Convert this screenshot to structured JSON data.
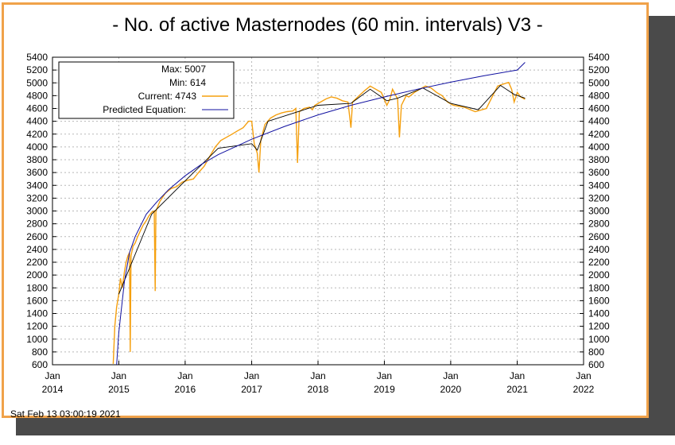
{
  "window": {
    "title": "- No. of active Masternodes (60 min. intervals) V3 -",
    "timestamp": "Sat Feb 13 03:00:19 2021"
  },
  "colors": {
    "frame": "#f0a24a",
    "current_series": "#f5a00f",
    "predicted_series": "#1010a0",
    "moving_average": "#000000",
    "grid": "#b8b8b8"
  },
  "chart_data": {
    "type": "line",
    "title": "- No. of active Masternodes (60 min. intervals) V3 -",
    "xlabel": "",
    "ylabel": "",
    "ylim": [
      600,
      5400
    ],
    "xlim": [
      "2014-01-01",
      "2022-01-01"
    ],
    "y_ticks": [
      600,
      800,
      1000,
      1200,
      1400,
      1600,
      1800,
      2000,
      2200,
      2400,
      2600,
      2800,
      3000,
      3200,
      3400,
      3600,
      3800,
      4000,
      4200,
      4400,
      4600,
      4800,
      5000,
      5200,
      5400
    ],
    "x_ticks": [
      {
        "month": "Jan",
        "year": "2014",
        "date": "2014-01-01"
      },
      {
        "month": "Jan",
        "year": "2015",
        "date": "2015-01-01"
      },
      {
        "month": "Jan",
        "year": "2016",
        "date": "2016-01-01"
      },
      {
        "month": "Jan",
        "year": "2017",
        "date": "2017-01-01"
      },
      {
        "month": "Jan",
        "year": "2018",
        "date": "2018-01-01"
      },
      {
        "month": "Jan",
        "year": "2019",
        "date": "2019-01-01"
      },
      {
        "month": "Jan",
        "year": "2020",
        "date": "2020-01-01"
      },
      {
        "month": "Jan",
        "year": "2021",
        "date": "2021-01-01"
      },
      {
        "month": "Jan",
        "year": "2022",
        "date": "2022-01-01"
      }
    ],
    "grid": true,
    "legend_position": "top-left",
    "legend": {
      "max_label": "Max: 5007",
      "min_label": "Min: 614",
      "current_label": "Current: 4743",
      "predicted_label": "Predicted Equation:"
    },
    "series": [
      {
        "name": "Current: 4743",
        "points": [
          [
            "2014-12-01",
            614
          ],
          [
            "2014-12-10",
            1200
          ],
          [
            "2014-12-20",
            1500
          ],
          [
            "2015-01-01",
            1700
          ],
          [
            "2015-01-10",
            1950
          ],
          [
            "2015-01-20",
            1800
          ],
          [
            "2015-02-01",
            2050
          ],
          [
            "2015-02-10",
            2200
          ],
          [
            "2015-02-20",
            2300
          ],
          [
            "2015-03-01",
            2350
          ],
          [
            "2015-03-05",
            800
          ],
          [
            "2015-03-09",
            2300
          ],
          [
            "2015-03-20",
            2450
          ],
          [
            "2015-04-01",
            2500
          ],
          [
            "2015-04-15",
            2600
          ],
          [
            "2015-05-01",
            2700
          ],
          [
            "2015-05-15",
            2780
          ],
          [
            "2015-06-01",
            2850
          ],
          [
            "2015-06-15",
            2920
          ],
          [
            "2015-07-01",
            2980
          ],
          [
            "2015-07-15",
            3000
          ],
          [
            "2015-07-20",
            1750
          ],
          [
            "2015-07-24",
            3000
          ],
          [
            "2015-08-15",
            3150
          ],
          [
            "2015-09-15",
            3280
          ],
          [
            "2015-10-15",
            3350
          ],
          [
            "2015-11-15",
            3380
          ],
          [
            "2015-12-15",
            3450
          ],
          [
            "2016-01-15",
            3480
          ],
          [
            "2016-02-15",
            3500
          ],
          [
            "2016-03-15",
            3600
          ],
          [
            "2016-04-15",
            3700
          ],
          [
            "2016-05-15",
            3850
          ],
          [
            "2016-06-15",
            4000
          ],
          [
            "2016-07-15",
            4100
          ],
          [
            "2016-08-15",
            4150
          ],
          [
            "2016-09-15",
            4200
          ],
          [
            "2016-10-15",
            4250
          ],
          [
            "2016-11-15",
            4300
          ],
          [
            "2016-12-15",
            4400
          ],
          [
            "2017-01-01",
            4400
          ],
          [
            "2017-01-15",
            4050
          ],
          [
            "2017-02-01",
            3900
          ],
          [
            "2017-02-10",
            3600
          ],
          [
            "2017-02-20",
            4100
          ],
          [
            "2017-03-01",
            4200
          ],
          [
            "2017-03-15",
            4350
          ],
          [
            "2017-04-15",
            4450
          ],
          [
            "2017-05-15",
            4500
          ],
          [
            "2017-06-15",
            4530
          ],
          [
            "2017-07-15",
            4550
          ],
          [
            "2017-08-15",
            4560
          ],
          [
            "2017-09-01",
            4600
          ],
          [
            "2017-09-10",
            3750
          ],
          [
            "2017-09-20",
            4550
          ],
          [
            "2017-10-15",
            4600
          ],
          [
            "2017-11-15",
            4620
          ],
          [
            "2017-12-01",
            4580
          ],
          [
            "2017-12-15",
            4650
          ],
          [
            "2018-01-15",
            4700
          ],
          [
            "2018-02-15",
            4750
          ],
          [
            "2018-03-15",
            4780
          ],
          [
            "2018-04-15",
            4760
          ],
          [
            "2018-05-15",
            4720
          ],
          [
            "2018-06-15",
            4700
          ],
          [
            "2018-07-01",
            4300
          ],
          [
            "2018-07-10",
            4700
          ],
          [
            "2018-08-15",
            4800
          ],
          [
            "2018-09-15",
            4880
          ],
          [
            "2018-10-15",
            4950
          ],
          [
            "2018-11-15",
            4900
          ],
          [
            "2018-12-15",
            4850
          ],
          [
            "2019-01-15",
            4650
          ],
          [
            "2019-02-01",
            4750
          ],
          [
            "2019-02-15",
            4900
          ],
          [
            "2019-03-15",
            4750
          ],
          [
            "2019-03-25",
            4150
          ],
          [
            "2019-04-05",
            4650
          ],
          [
            "2019-05-01",
            4800
          ],
          [
            "2019-05-15",
            4780
          ],
          [
            "2019-06-15",
            4850
          ],
          [
            "2019-07-15",
            4900
          ],
          [
            "2019-08-15",
            4950
          ],
          [
            "2019-09-15",
            4920
          ],
          [
            "2019-10-15",
            4850
          ],
          [
            "2019-11-15",
            4800
          ],
          [
            "2019-12-15",
            4700
          ],
          [
            "2020-01-15",
            4650
          ],
          [
            "2020-03-15",
            4620
          ],
          [
            "2020-05-15",
            4550
          ],
          [
            "2020-07-15",
            4600
          ],
          [
            "2020-09-15",
            4950
          ],
          [
            "2020-10-15",
            4980
          ],
          [
            "2020-11-15",
            5007
          ],
          [
            "2020-12-01",
            4900
          ],
          [
            "2020-12-15",
            4700
          ],
          [
            "2021-01-01",
            4850
          ],
          [
            "2021-01-20",
            4780
          ],
          [
            "2021-02-13",
            4743
          ]
        ]
      },
      {
        "name": "Predicted Equation:",
        "points": [
          [
            "2014-12-20",
            600
          ],
          [
            "2015-01-01",
            1100
          ],
          [
            "2015-02-01",
            1900
          ],
          [
            "2015-03-01",
            2350
          ],
          [
            "2015-04-01",
            2600
          ],
          [
            "2015-06-01",
            2950
          ],
          [
            "2015-08-01",
            3150
          ],
          [
            "2015-10-01",
            3330
          ],
          [
            "2016-01-01",
            3550
          ],
          [
            "2016-04-01",
            3730
          ],
          [
            "2016-07-01",
            3880
          ],
          [
            "2016-10-01",
            4000
          ],
          [
            "2017-01-01",
            4120
          ],
          [
            "2017-07-01",
            4320
          ],
          [
            "2018-01-01",
            4500
          ],
          [
            "2018-07-01",
            4650
          ],
          [
            "2019-01-01",
            4780
          ],
          [
            "2019-07-01",
            4900
          ],
          [
            "2020-01-01",
            5010
          ],
          [
            "2020-07-01",
            5110
          ],
          [
            "2021-01-01",
            5200
          ],
          [
            "2021-02-13",
            5320
          ]
        ]
      }
    ],
    "moving_average": [
      [
        "2015-01-01",
        1700
      ],
      [
        "2015-07-01",
        2950
      ],
      [
        "2016-01-01",
        3470
      ],
      [
        "2016-07-01",
        3980
      ],
      [
        "2017-01-01",
        4050
      ],
      [
        "2017-02-01",
        3950
      ],
      [
        "2017-04-01",
        4400
      ],
      [
        "2018-01-01",
        4650
      ],
      [
        "2018-07-01",
        4680
      ],
      [
        "2018-10-15",
        4900
      ],
      [
        "2019-01-15",
        4720
      ],
      [
        "2019-03-15",
        4760
      ],
      [
        "2019-08-01",
        4920
      ],
      [
        "2020-01-01",
        4680
      ],
      [
        "2020-06-01",
        4580
      ],
      [
        "2020-10-01",
        4960
      ],
      [
        "2020-12-15",
        4820
      ],
      [
        "2021-02-13",
        4760
      ]
    ]
  }
}
